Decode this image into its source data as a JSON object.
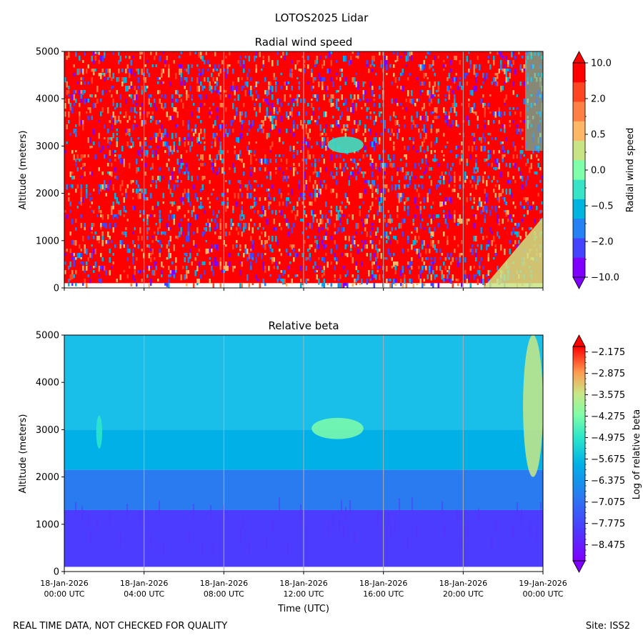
{
  "figure": {
    "suptitle": "LOTOS2025 Lidar",
    "footer_left": "REAL TIME DATA, NOT CHECKED FOR QUALITY",
    "footer_right": "Site: ISS2"
  },
  "chart_data": [
    {
      "type": "heatmap",
      "title": "Radial wind speed",
      "ylabel": "Altitude (meters)",
      "xlabel": "",
      "ylim": [
        0,
        5000
      ],
      "yticks": [
        0,
        1000,
        2000,
        3000,
        4000,
        5000
      ],
      "x_hours_range": [
        0,
        24
      ],
      "xtick_hours": [
        0,
        4,
        8,
        12,
        16,
        20,
        24
      ],
      "colorbar": {
        "label": "Radial wind speed",
        "tick_labels": [
          "10.0",
          "2.0",
          "0.5",
          "0.0",
          "−0.5",
          "−2.0",
          "−10.0"
        ],
        "colors_top_to_bottom": [
          "#ff0000",
          "#ff4422",
          "#ff7f44",
          "#fdb766",
          "#c9e486",
          "#80ffaa",
          "#39e3c6",
          "#00b4e0",
          "#2581f4",
          "#4444ff",
          "#7f00ff"
        ]
      },
      "features": [
        {
          "description": "mostly red (high speed) speckled field",
          "time_hours": [
            0,
            24
          ],
          "altitude_m": [
            100,
            5000
          ]
        },
        {
          "description": "cyan/green patch",
          "time_hours": [
            13.2,
            15
          ],
          "altitude_m": [
            2850,
            3200
          ]
        },
        {
          "description": "yellow/green low-level region",
          "time_hours": [
            21,
            24
          ],
          "altitude_m": [
            0,
            1500
          ]
        }
      ]
    },
    {
      "type": "heatmap",
      "title": "Relative beta",
      "ylabel": "Altitude (meters)",
      "xlabel": "Time (UTC)",
      "ylim": [
        0,
        5000
      ],
      "yticks": [
        0,
        1000,
        2000,
        3000,
        4000,
        5000
      ],
      "x_hours_range": [
        0,
        24
      ],
      "xtick_hours": [
        0,
        4,
        8,
        12,
        16,
        20,
        24
      ],
      "xtick_labels": [
        [
          "18-Jan-2026",
          "00:00 UTC"
        ],
        [
          "18-Jan-2026",
          "04:00 UTC"
        ],
        [
          "18-Jan-2026",
          "08:00 UTC"
        ],
        [
          "18-Jan-2026",
          "12:00 UTC"
        ],
        [
          "18-Jan-2026",
          "16:00 UTC"
        ],
        [
          "18-Jan-2026",
          "20:00 UTC"
        ],
        [
          "19-Jan-2026",
          "00:00 UTC"
        ]
      ],
      "colorbar": {
        "label": "Log of relative beta",
        "range": [
          -9.0,
          -2.0
        ],
        "tick_labels": [
          "−2.175",
          "−2.875",
          "−3.575",
          "−4.275",
          "−4.975",
          "−5.675",
          "−6.375",
          "−7.075",
          "−7.775",
          "−8.475"
        ]
      },
      "layers": [
        {
          "altitude_m": [
            3000,
            5000
          ],
          "log_beta": -6.9
        },
        {
          "altitude_m": [
            2150,
            3000
          ],
          "log_beta": -7.1
        },
        {
          "altitude_m": [
            1300,
            2150
          ],
          "log_beta": -7.6
        },
        {
          "altitude_m": [
            100,
            1300
          ],
          "log_beta": -8.2
        }
      ],
      "features": [
        {
          "description": "green cloud streak",
          "time_hours": [
            1.6,
            1.9
          ],
          "altitude_m": [
            2600,
            3300
          ],
          "log_beta": -5.8
        },
        {
          "description": "green cloud band",
          "time_hours": [
            12.4,
            15
          ],
          "altitude_m": [
            2800,
            3250
          ],
          "log_beta": -5.7
        },
        {
          "description": "yellow/green clouds",
          "time_hours": [
            23,
            24
          ],
          "altitude_m": [
            2000,
            5000
          ],
          "log_beta": -5.0
        }
      ]
    }
  ]
}
